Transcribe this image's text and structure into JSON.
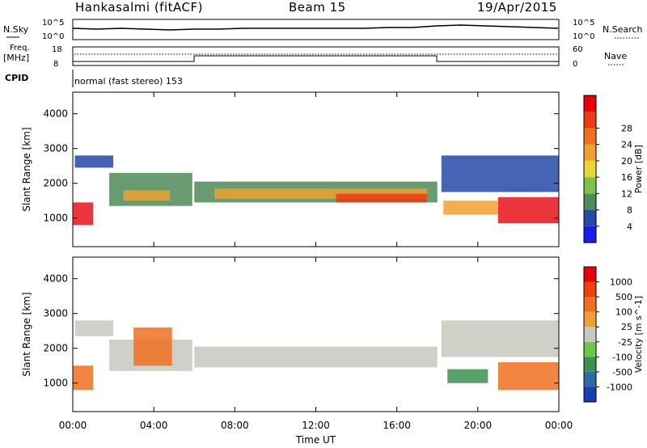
{
  "header": {
    "station": "Hankasalmi (fitACF)",
    "beam": "Beam 15",
    "date": "19/Apr/2015"
  },
  "strip_panels": {
    "noise": {
      "left_label": "N.Sky",
      "right_label": "N.Search",
      "left_ticks": [
        "10^5",
        "10^0"
      ],
      "right_ticks": [
        "10^5",
        "10^0"
      ]
    },
    "frequency": {
      "left_label_1": "Freq.",
      "left_label_2": "[MHz]",
      "right_label": "Nave",
      "left_ticks": [
        "18",
        "8"
      ],
      "right_ticks": [
        "60",
        "0"
      ]
    },
    "cpid": {
      "label": "CPID",
      "text": "normal (fast stereo) 153"
    }
  },
  "chart_data": [
    {
      "type": "heatmap",
      "name": "power-panel",
      "xlabel": "",
      "ylabel": "Slant Range [km]",
      "x_ticks": [
        "00:00",
        "04:00",
        "08:00",
        "12:00",
        "16:00",
        "20:00",
        "00:00"
      ],
      "x_range_hours": [
        0,
        24
      ],
      "y_ticks": [
        1000,
        2000,
        3000,
        4000
      ],
      "ylim": [
        180,
        4620
      ],
      "colorbar": {
        "label": "Power [dB]",
        "ticks": [
          "4",
          "8",
          "12",
          "16",
          "20",
          "24",
          "28"
        ],
        "colors": [
          "#1a1aee",
          "#2449a6",
          "#4f8a58",
          "#7ec24d",
          "#e6d733",
          "#f0a030",
          "#f07020",
          "#ee3a12",
          "#e8000a"
        ]
      },
      "bands": [
        {
          "t": [
            0.0,
            1.0
          ],
          "r": [
            800,
            1450
          ],
          "color": "#e8101a"
        },
        {
          "t": [
            0.1,
            2.0
          ],
          "r": [
            2450,
            2800
          ],
          "color": "#2449a6"
        },
        {
          "t": [
            1.8,
            5.9
          ],
          "r": [
            1350,
            2300
          ],
          "color": "#4f8a58"
        },
        {
          "t": [
            2.5,
            4.8
          ],
          "r": [
            1500,
            1800
          ],
          "color": "#f0a030"
        },
        {
          "t": [
            6.0,
            18.0
          ],
          "r": [
            1450,
            2050
          ],
          "color": "#4f8a58"
        },
        {
          "t": [
            7.0,
            17.5
          ],
          "r": [
            1550,
            1850
          ],
          "color": "#f0a030"
        },
        {
          "t": [
            13.0,
            17.5
          ],
          "r": [
            1450,
            1700
          ],
          "color": "#ee3a12"
        },
        {
          "t": [
            18.2,
            24.0
          ],
          "r": [
            1750,
            2800
          ],
          "color": "#2449a6"
        },
        {
          "t": [
            21.0,
            24.0
          ],
          "r": [
            850,
            1600
          ],
          "color": "#e8101a"
        },
        {
          "t": [
            18.3,
            21.0
          ],
          "r": [
            1100,
            1500
          ],
          "color": "#f0a030"
        }
      ]
    },
    {
      "type": "heatmap",
      "name": "velocity-panel",
      "xlabel": "Time UT",
      "ylabel": "Slant Range [km]",
      "x_ticks": [
        "00:00",
        "04:00",
        "08:00",
        "12:00",
        "16:00",
        "20:00",
        "00:00"
      ],
      "x_range_hours": [
        0,
        24
      ],
      "y_ticks": [
        1000,
        2000,
        3000,
        4000
      ],
      "ylim": [
        180,
        4620
      ],
      "colorbar": {
        "label": "Velocity [m s^-1]",
        "ticks": [
          "1000",
          "500",
          "100",
          "25",
          "-25",
          "-100",
          "-500",
          "-1000"
        ],
        "colors": [
          "#1a3cb4",
          "#2a6aa8",
          "#3c9050",
          "#6cc84a",
          "#c8c8c0",
          "#f0a030",
          "#f07020",
          "#f04010",
          "#e8000a"
        ]
      },
      "bands": [
        {
          "t": [
            0.0,
            1.0
          ],
          "r": [
            800,
            1500
          ],
          "color": "#f07020"
        },
        {
          "t": [
            0.1,
            2.0
          ],
          "r": [
            2350,
            2800
          ],
          "color": "#c8c8c0"
        },
        {
          "t": [
            1.8,
            5.9
          ],
          "r": [
            1350,
            2250
          ],
          "color": "#c8c8c0"
        },
        {
          "t": [
            3.0,
            4.9
          ],
          "r": [
            1500,
            2600
          ],
          "color": "#f07020"
        },
        {
          "t": [
            6.0,
            18.0
          ],
          "r": [
            1450,
            2050
          ],
          "color": "#c8c8c0"
        },
        {
          "t": [
            18.2,
            24.0
          ],
          "r": [
            1750,
            2800
          ],
          "color": "#c8c8c0"
        },
        {
          "t": [
            21.0,
            24.0
          ],
          "r": [
            800,
            1600
          ],
          "color": "#f07020"
        },
        {
          "t": [
            18.5,
            20.5
          ],
          "r": [
            1000,
            1400
          ],
          "color": "#3c9050"
        }
      ]
    }
  ],
  "colors": {
    "axis": "#000000",
    "ground_scatter": "#c8c8c0"
  }
}
